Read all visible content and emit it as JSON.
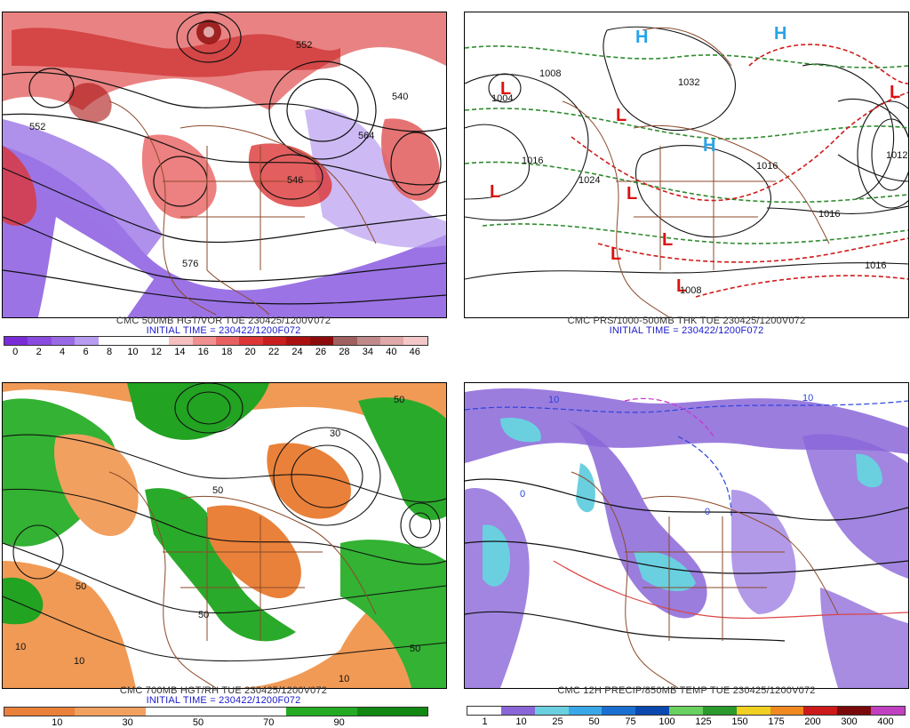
{
  "panels": [
    {
      "caption": "CMC 500MB HGT/VOR TUE 230425/1200V072",
      "init": "INITIAL TIME = 230422/1200F072",
      "legend": {
        "labels": [
          "0",
          "2",
          "4",
          "6",
          "8",
          "10",
          "12",
          "14",
          "16",
          "18",
          "20",
          "22",
          "24",
          "26",
          "28",
          "34",
          "40",
          "46"
        ],
        "colors": [
          "#7a2bd8",
          "#8a4ae0",
          "#9a6ae6",
          "#b89cf0",
          "#ffffff",
          "#ffffff",
          "#ffffff",
          "#f6c0c0",
          "#f09090",
          "#e86060",
          "#dc3636",
          "#c81e1e",
          "#aa1010",
          "#8c0a0a",
          "#a06060",
          "#c08a8a",
          "#e0a8a8",
          "#f4c8c8"
        ]
      },
      "contour_labels": [
        "552",
        "540",
        "552",
        "564",
        "576",
        "546"
      ],
      "background": "#ffffff"
    },
    {
      "caption": "CMC PRS/1000-500MB THK TUE 230425/1200V072",
      "init": "INITIAL TIME = 230422/1200F072",
      "legend": {
        "labels": [],
        "colors": []
      },
      "contour_labels": [
        "1016",
        "1032",
        "1016",
        "1016",
        "1016",
        "1024",
        "1008",
        "1008",
        "1004",
        "1012"
      ],
      "markers": [
        {
          "t": "L",
          "c": "#dd1111"
        },
        {
          "t": "L",
          "c": "#dd1111"
        },
        {
          "t": "L",
          "c": "#dd1111"
        },
        {
          "t": "L",
          "c": "#dd1111"
        },
        {
          "t": "L",
          "c": "#dd1111"
        },
        {
          "t": "L",
          "c": "#dd1111"
        },
        {
          "t": "L",
          "c": "#dd1111"
        },
        {
          "t": "L",
          "c": "#dd1111"
        },
        {
          "t": "H",
          "c": "#29a3e8"
        },
        {
          "t": "H",
          "c": "#29a3e8"
        },
        {
          "t": "H",
          "c": "#29a3e8"
        }
      ],
      "background": "#ffffff"
    },
    {
      "caption": "CMC 700MB HGT/RH TUE 230425/1200V072",
      "init": "INITIAL TIME = 230422/1200F072",
      "legend": {
        "labels": [
          "10",
          "30",
          "50",
          "70",
          "90"
        ],
        "colors": [
          "#e9813a",
          "#f2a060",
          "#ffffff",
          "#ffffff",
          "#22aa22",
          "#118811"
        ]
      },
      "contour_labels": [
        "50",
        "10",
        "30",
        "50",
        "50",
        "10",
        "50",
        "10",
        "50"
      ],
      "background": "#f19a55"
    },
    {
      "caption": "CMC 12H PRECIP/850MB TEMP TUE 230425/1200V072",
      "init": "",
      "legend": {
        "labels": [
          "1",
          "10",
          "25",
          "50",
          "75",
          "100",
          "125",
          "150",
          "175",
          "200",
          "300",
          "400"
        ],
        "colors": [
          "#ffffff",
          "#8a66d8",
          "#6ad0e0",
          "#3aa8e8",
          "#1a70d0",
          "#0a48b0",
          "#6ad060",
          "#2a9a2a",
          "#f0d020",
          "#f08a20",
          "#cc1a1a",
          "#7a0a0a",
          "#c040c0"
        ]
      },
      "contour_labels": [
        "10",
        "0",
        "0",
        "10"
      ],
      "background": "#ffffff"
    }
  ]
}
